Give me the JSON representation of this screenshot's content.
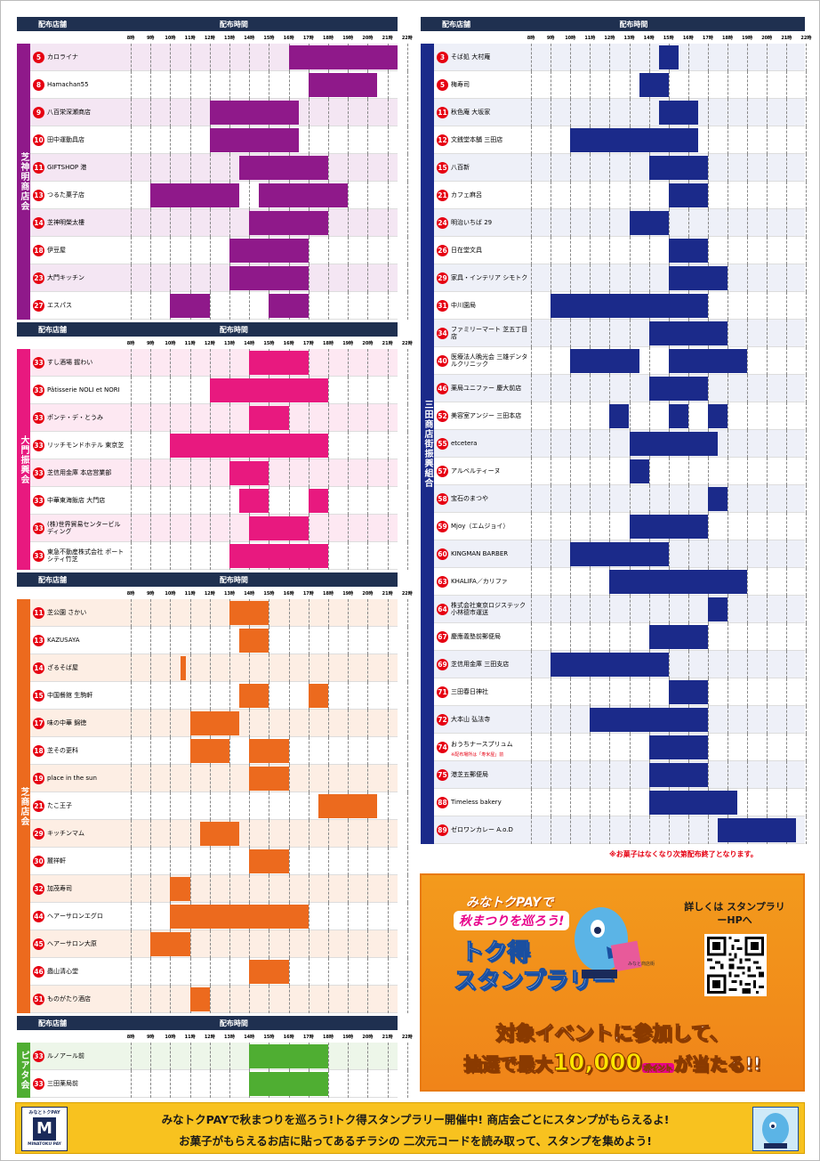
{
  "headers": {
    "store": "配布店舗",
    "time": "配布時間"
  },
  "hour_labels": [
    "8時",
    "9時",
    "10時",
    "11時",
    "12時",
    "13時",
    "14時",
    "15時",
    "16時",
    "17時",
    "18時",
    "19時",
    "20時",
    "21時",
    "22時"
  ],
  "colors": {
    "shiba_shinmei": "#8f198a",
    "daimon": "#e8197f",
    "shiba": "#ec6a1e",
    "piata": "#4fae32",
    "mita": "#1b2a8a",
    "header": "#1f3050"
  },
  "sections": {
    "shiba_shinmei": {
      "label": "芝神明商店会",
      "rows": [
        {
          "num": "5",
          "name": "カロライナ",
          "bars": [
            [
              16,
              21.5
            ]
          ]
        },
        {
          "num": "8",
          "name": "Hamachan55",
          "bars": [
            [
              17,
              20.5
            ]
          ]
        },
        {
          "num": "9",
          "name": "八百栄深瀬商店",
          "bars": [
            [
              12,
              16.5
            ]
          ]
        },
        {
          "num": "10",
          "name": "田中運動具店",
          "bars": [
            [
              12,
              16.5
            ]
          ]
        },
        {
          "num": "11",
          "name": "GIFTSHOP 港",
          "bars": [
            [
              13.5,
              18
            ]
          ]
        },
        {
          "num": "13",
          "name": "つるた菓子店",
          "bars": [
            [
              9,
              13.5
            ],
            [
              14.5,
              19
            ]
          ]
        },
        {
          "num": "14",
          "name": "芝神明榮太樓",
          "bars": [
            [
              14,
              18
            ]
          ]
        },
        {
          "num": "18",
          "name": "伊豆屋",
          "bars": [
            [
              13,
              17
            ]
          ]
        },
        {
          "num": "23",
          "name": "大門キッチン",
          "bars": [
            [
              13,
              17
            ]
          ]
        },
        {
          "num": "27",
          "name": "エスパス",
          "bars": [
            [
              10,
              12
            ],
            [
              15,
              17
            ]
          ]
        }
      ]
    },
    "daimon": {
      "label": "大門振興会",
      "rows": [
        {
          "num": "33",
          "name": "すし酒場 握わい",
          "bars": [
            [
              14,
              17
            ]
          ]
        },
        {
          "num": "33",
          "name": "Pâtisserie NOLI et NORI",
          "bars": [
            [
              12,
              18
            ]
          ]
        },
        {
          "num": "33",
          "name": "ポンテ・デ・とうみ",
          "bars": [
            [
              14,
              16
            ]
          ]
        },
        {
          "num": "33",
          "name": "リッチモンドホテル 東京芝",
          "bars": [
            [
              10,
              18
            ]
          ]
        },
        {
          "num": "33",
          "name": "芝信用金庫 本店営業部",
          "bars": [
            [
              13,
              15
            ]
          ]
        },
        {
          "num": "33",
          "name": "中華東海飯店 大門店",
          "bars": [
            [
              13.5,
              15
            ],
            [
              17,
              18
            ]
          ]
        },
        {
          "num": "33",
          "name": "(株)世界貿易センタービルディング",
          "bars": [
            [
              14,
              17
            ]
          ]
        },
        {
          "num": "33",
          "name": "東急不動産株式会社 ポートシティ竹芝",
          "bars": [
            [
              13,
              18
            ]
          ]
        }
      ]
    },
    "shiba": {
      "label": "芝商店会",
      "rows": [
        {
          "num": "11",
          "name": "芝公園 さかい",
          "bars": [
            [
              13,
              15
            ]
          ]
        },
        {
          "num": "13",
          "name": "KAZUSAYA",
          "bars": [
            [
              13.5,
              15
            ]
          ]
        },
        {
          "num": "14",
          "name": "ざるそば屋",
          "bars": [
            [
              10.5,
              10.8
            ]
          ]
        },
        {
          "num": "15",
          "name": "中国餐館 生駒軒",
          "bars": [
            [
              13.5,
              15
            ],
            [
              17,
              18
            ]
          ]
        },
        {
          "num": "17",
          "name": "味の中華 錦徳",
          "bars": [
            [
              11,
              13.5
            ]
          ]
        },
        {
          "num": "18",
          "name": "芝その更科",
          "bars": [
            [
              11,
              13
            ],
            [
              14,
              16
            ]
          ]
        },
        {
          "num": "19",
          "name": "place in the sun",
          "bars": [
            [
              14,
              16
            ]
          ]
        },
        {
          "num": "21",
          "name": "たこ王子",
          "bars": [
            [
              17.5,
              20.5
            ]
          ]
        },
        {
          "num": "29",
          "name": "キッチンマム",
          "bars": [
            [
              11.5,
              13.5
            ]
          ]
        },
        {
          "num": "30",
          "name": "麓祥軒",
          "bars": [
            [
              14,
              16
            ]
          ]
        },
        {
          "num": "32",
          "name": "加茂寿司",
          "bars": [
            [
              10,
              11
            ]
          ]
        },
        {
          "num": "44",
          "name": "ヘアーサロンエグロ",
          "bars": [
            [
              10,
              17
            ]
          ]
        },
        {
          "num": "45",
          "name": "ヘアーサロン大原",
          "bars": [
            [
              9,
              11
            ]
          ]
        },
        {
          "num": "46",
          "name": "蟲山清心堂",
          "bars": [
            [
              14,
              16
            ]
          ]
        },
        {
          "num": "51",
          "name": "ものがたり酒店",
          "bars": [
            [
              11,
              12
            ]
          ]
        }
      ]
    },
    "piata": {
      "label": "ピアタ会",
      "rows": [
        {
          "num": "33",
          "name": "ルノアール前",
          "bars": [
            [
              14,
              18
            ]
          ]
        },
        {
          "num": "33",
          "name": "三田薬局前",
          "bars": [
            [
              14,
              18
            ]
          ]
        }
      ]
    },
    "mita": {
      "label": "三田商店街振興組合",
      "rows": [
        {
          "num": "3",
          "name": "そば処 大村庵",
          "bars": [
            [
              14.5,
              15.5
            ]
          ]
        },
        {
          "num": "5",
          "name": "梅寿司",
          "bars": [
            [
              13.5,
              15
            ]
          ]
        },
        {
          "num": "11",
          "name": "秋色庵 大坂家",
          "bars": [
            [
              14.5,
              16.5
            ]
          ]
        },
        {
          "num": "12",
          "name": "文銭堂本舗 三田店",
          "bars": [
            [
              10,
              16.5
            ]
          ]
        },
        {
          "num": "15",
          "name": "八百新",
          "bars": [
            [
              14,
              17
            ]
          ]
        },
        {
          "num": "21",
          "name": "カフェ麻呂",
          "bars": [
            [
              15,
              17
            ]
          ]
        },
        {
          "num": "24",
          "name": "明治いちば 29",
          "bars": [
            [
              13,
              15
            ]
          ]
        },
        {
          "num": "26",
          "name": "日在堂文具",
          "bars": [
            [
              15,
              17
            ]
          ]
        },
        {
          "num": "29",
          "name": "家具・インテリア シモトク",
          "bars": [
            [
              15,
              18
            ]
          ]
        },
        {
          "num": "31",
          "name": "中川園局",
          "bars": [
            [
              9,
              17
            ]
          ]
        },
        {
          "num": "34",
          "name": "ファミリーマート 芝五丁目店",
          "bars": [
            [
              14,
              18
            ]
          ]
        },
        {
          "num": "40",
          "name": "医療法人晩光会 三雄デンタルクリニック",
          "bars": [
            [
              10,
              13.5
            ],
            [
              15,
              19
            ]
          ]
        },
        {
          "num": "46",
          "name": "薬局ユニファー 慶大前店",
          "bars": [
            [
              14,
              17
            ]
          ]
        },
        {
          "num": "52",
          "name": "美容室アンジー 三田本店",
          "bars": [
            [
              12,
              13
            ],
            [
              15,
              16
            ],
            [
              17,
              18
            ]
          ]
        },
        {
          "num": "55",
          "name": "etcetera",
          "bars": [
            [
              13,
              17.5
            ]
          ]
        },
        {
          "num": "57",
          "name": "アルベルティーヌ",
          "bars": [
            [
              13,
              14
            ]
          ]
        },
        {
          "num": "58",
          "name": "宝石のまつや",
          "bars": [
            [
              17,
              18
            ]
          ]
        },
        {
          "num": "59",
          "name": "Mjoy（エムジョイ）",
          "bars": [
            [
              13,
              17
            ]
          ]
        },
        {
          "num": "60",
          "name": "KINGMAN BARBER",
          "bars": [
            [
              10,
              15
            ]
          ]
        },
        {
          "num": "63",
          "name": "KHALIFA／カリファ",
          "bars": [
            [
              12,
              19
            ]
          ]
        },
        {
          "num": "64",
          "name": "株式会社東京ロジステック 小林德市運送",
          "bars": [
            [
              17,
              18
            ]
          ]
        },
        {
          "num": "67",
          "name": "慶應義塾前郵便局",
          "bars": [
            [
              14,
              17
            ]
          ]
        },
        {
          "num": "69",
          "name": "芝信用金庫 三田支店",
          "bars": [
            [
              9,
              15
            ]
          ]
        },
        {
          "num": "71",
          "name": "三田春日神社",
          "bars": [
            [
              15,
              17
            ]
          ]
        },
        {
          "num": "72",
          "name": "大本山 弘法寺",
          "bars": [
            [
              11,
              17
            ]
          ]
        },
        {
          "num": "74",
          "name": "おうちナースプリュム",
          "sub": "※配布場所は「寿米屋」前",
          "bars": [
            [
              14,
              17
            ]
          ]
        },
        {
          "num": "75",
          "name": "港芝五郵便局",
          "bars": [
            [
              14,
              17
            ]
          ]
        },
        {
          "num": "88",
          "name": "Timeless bakery",
          "bars": [
            [
              14,
              18.5
            ]
          ]
        },
        {
          "num": "89",
          "name": "ゼロワンカレー A.o.D",
          "bars": [
            [
              17.5,
              21.5
            ]
          ]
        }
      ]
    }
  },
  "note": "※お菓子はなくなり次第配布終了となります。",
  "promo": {
    "line1": "みなトクPAYで",
    "line2": "秋まつりを巡ろう!",
    "title1": "トク得",
    "title2": "スタンプラリー",
    "detail": "詳しくは スタンプラリーHPへ",
    "catch1": "対象イベントに参加して、",
    "catch2a": "抽選で最大",
    "catch2b": "10,000",
    "catch2c": "ポイント",
    "catch2d": "が当たる!!",
    "mascot_tag": "みなと商店街"
  },
  "banner": {
    "line1": "みなトクPAYで秋まつりを巡ろう!トク得スタンプラリー開催中!  商店会ごとにスタンプがもらえるよ!",
    "line2": "お菓子がもらえるお店に貼ってあるチラシの  二次元コードを読み取って、スタンプを集めよう!",
    "logo_top": "みなとトクPAY",
    "logo_bottom": "MINATOKU PAY"
  }
}
